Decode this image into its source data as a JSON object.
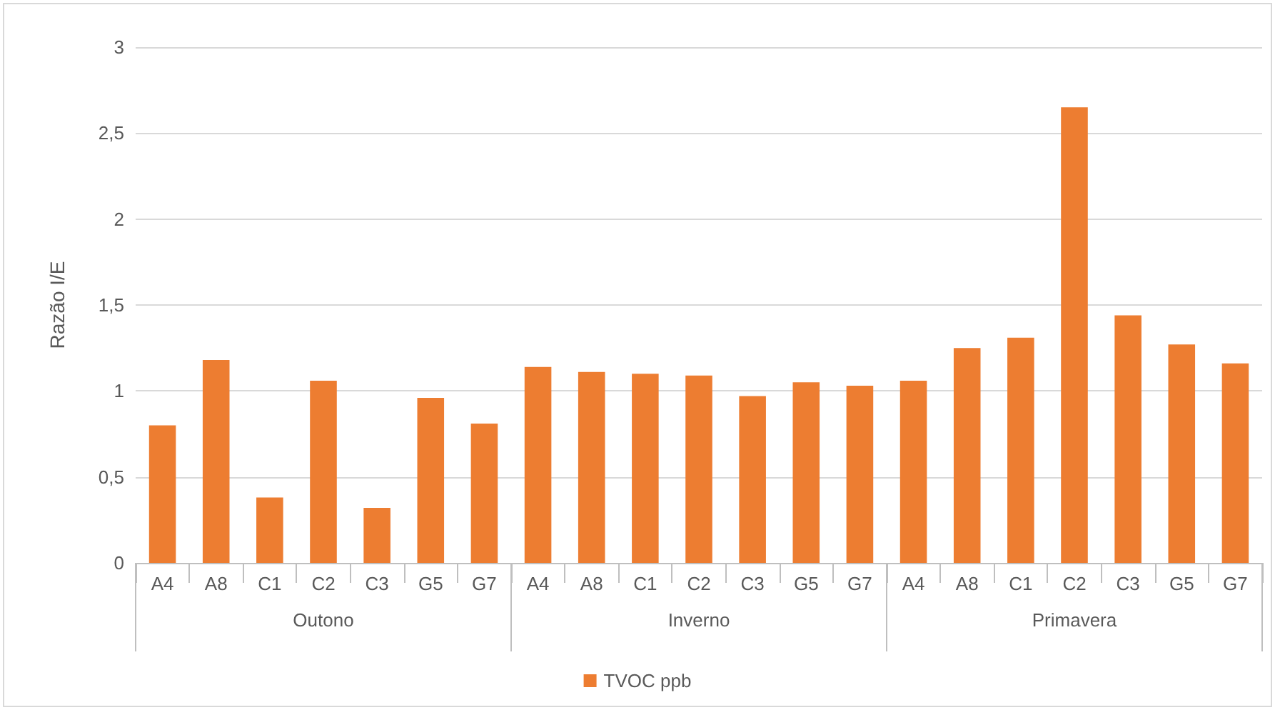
{
  "chart_data": {
    "type": "bar",
    "ylabel": "Razão I/E",
    "categories": [
      "A4",
      "A8",
      "C1",
      "C2",
      "C3",
      "G5",
      "G7",
      "A4",
      "A8",
      "C1",
      "C2",
      "C3",
      "G5",
      "G7",
      "A4",
      "A8",
      "C1",
      "C2",
      "C3",
      "G5",
      "G7"
    ],
    "series": [
      {
        "name": "TVOC ppb",
        "color": "#ed7d31",
        "values": [
          0.8,
          1.18,
          0.38,
          1.06,
          0.32,
          0.96,
          0.81,
          1.14,
          1.11,
          1.1,
          1.09,
          0.97,
          1.05,
          1.03,
          1.06,
          1.25,
          1.31,
          2.65,
          1.44,
          1.27,
          1.16
        ]
      }
    ],
    "annotations": [
      "Outono",
      "Inverno",
      "Primavera"
    ],
    "ylim": [
      0,
      3
    ],
    "yticks": [
      0,
      {
        "value": 0.5,
        "label": "0,5"
      },
      1,
      {
        "value": 1.5,
        "label": "1,5"
      },
      2,
      {
        "value": 2.5,
        "label": "2,5"
      },
      3
    ],
    "grid": "y",
    "legend": "bottom"
  }
}
